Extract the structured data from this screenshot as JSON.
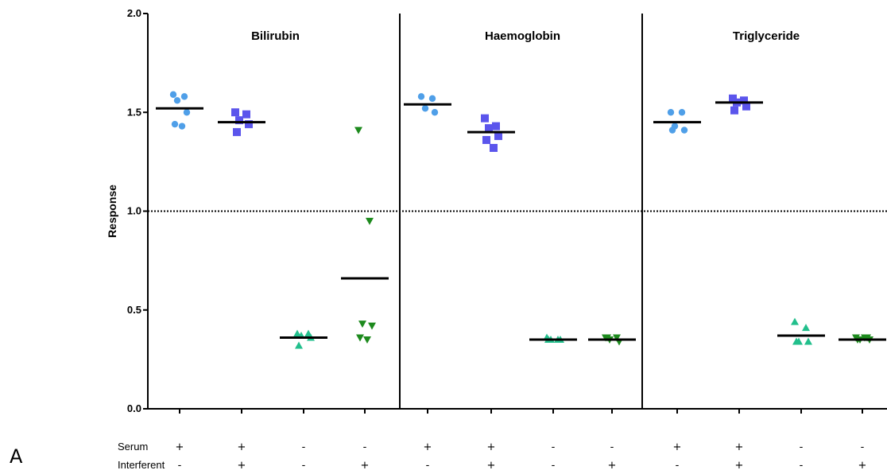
{
  "figure_label": "A",
  "chart_data": {
    "type": "scatter",
    "ylabel": "Response",
    "ylim": [
      0.0,
      2.0
    ],
    "y_ticks": [
      "0.0",
      "0.5",
      "1.0",
      "1.5",
      "2.0"
    ],
    "reference_line": 1.0,
    "grid": false,
    "colors": {
      "serum_only": "#4f9fe8",
      "serum_interferent": "#5b55ec",
      "buffer": "#22bf8c",
      "interferent_only": "#1d8a1d",
      "mean_line": "#000000",
      "reference_line": "#000000"
    },
    "row_labels": [
      "Serum",
      "Interferent"
    ],
    "panels": [
      {
        "title": "Bilirubin",
        "groups": [
          {
            "serum": "+",
            "interferent": "-",
            "marker": "circle",
            "color_key": "serum_only",
            "mean": 1.52,
            "values": [
              1.59,
              1.58,
              1.56,
              1.5,
              1.44,
              1.43
            ]
          },
          {
            "serum": "+",
            "interferent": "+",
            "marker": "square",
            "color_key": "serum_interferent",
            "mean": 1.45,
            "values": [
              1.5,
              1.49,
              1.46,
              1.44,
              1.4
            ]
          },
          {
            "serum": "-",
            "interferent": "-",
            "marker": "triangle-up",
            "color_key": "buffer",
            "mean": 0.36,
            "values": [
              0.38,
              0.38,
              0.37,
              0.36,
              0.32
            ]
          },
          {
            "serum": "-",
            "interferent": "+",
            "marker": "triangle-down",
            "color_key": "interferent_only",
            "mean": 0.66,
            "values": [
              1.41,
              0.95,
              0.43,
              0.42,
              0.36,
              0.35
            ]
          }
        ]
      },
      {
        "title": "Haemoglobin",
        "groups": [
          {
            "serum": "+",
            "interferent": "-",
            "marker": "circle",
            "color_key": "serum_only",
            "mean": 1.54,
            "values": [
              1.58,
              1.57,
              1.52,
              1.5
            ]
          },
          {
            "serum": "+",
            "interferent": "+",
            "marker": "square",
            "color_key": "serum_interferent",
            "mean": 1.4,
            "values": [
              1.47,
              1.43,
              1.42,
              1.38,
              1.36,
              1.32
            ]
          },
          {
            "serum": "-",
            "interferent": "-",
            "marker": "triangle-up",
            "color_key": "buffer",
            "mean": 0.35,
            "values": [
              0.36,
              0.35,
              0.35,
              0.35,
              0.35
            ]
          },
          {
            "serum": "-",
            "interferent": "+",
            "marker": "triangle-down",
            "color_key": "interferent_only",
            "mean": 0.35,
            "values": [
              0.36,
              0.36,
              0.35,
              0.34,
              0.36
            ]
          }
        ]
      },
      {
        "title": "Triglyceride",
        "groups": [
          {
            "serum": "+",
            "interferent": "-",
            "marker": "circle",
            "color_key": "serum_only",
            "mean": 1.45,
            "values": [
              1.5,
              1.5,
              1.43,
              1.41,
              1.41
            ]
          },
          {
            "serum": "+",
            "interferent": "+",
            "marker": "square",
            "color_key": "serum_interferent",
            "mean": 1.55,
            "values": [
              1.57,
              1.56,
              1.55,
              1.53,
              1.51
            ]
          },
          {
            "serum": "-",
            "interferent": "-",
            "marker": "triangle-up",
            "color_key": "buffer",
            "mean": 0.37,
            "values": [
              0.44,
              0.41,
              0.34,
              0.34,
              0.34
            ]
          },
          {
            "serum": "-",
            "interferent": "+",
            "marker": "triangle-down",
            "color_key": "interferent_only",
            "mean": 0.35,
            "values": [
              0.36,
              0.36,
              0.35,
              0.35,
              0.35,
              0.36
            ]
          }
        ]
      }
    ]
  }
}
